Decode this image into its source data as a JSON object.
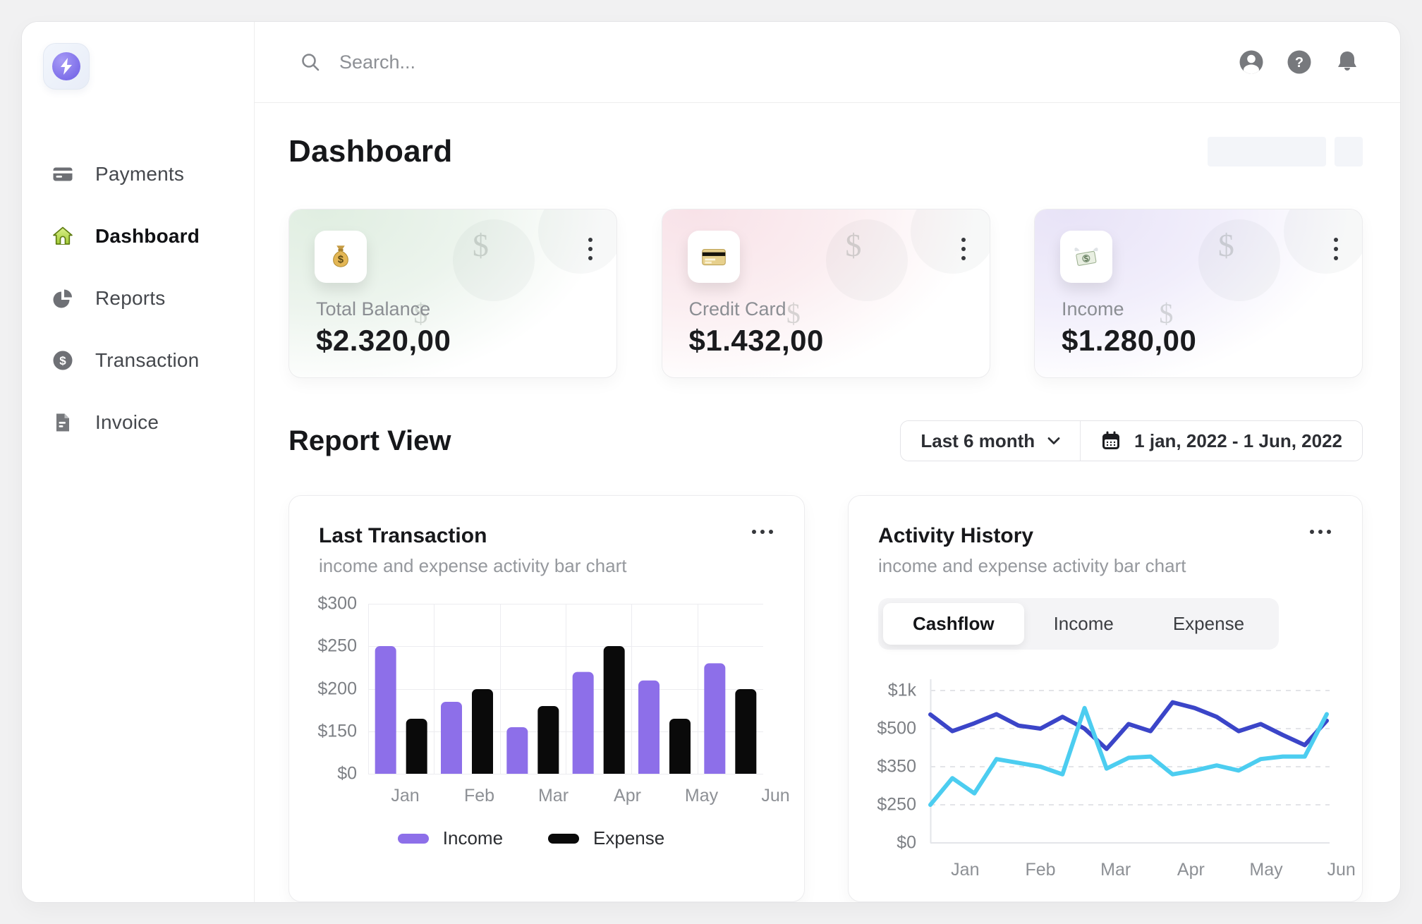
{
  "topbar": {
    "search_placeholder": "Search...",
    "icons": [
      "profile",
      "help",
      "notifications"
    ]
  },
  "sidebar": {
    "logo": "lightning-logo",
    "items": [
      {
        "label": "Payments",
        "icon": "payments",
        "active": false
      },
      {
        "label": "Dashboard",
        "icon": "dashboard",
        "active": true
      },
      {
        "label": "Reports",
        "icon": "reports",
        "active": false
      },
      {
        "label": "Transaction",
        "icon": "transaction",
        "active": false
      },
      {
        "label": "Invoice",
        "icon": "invoice",
        "active": false
      }
    ]
  },
  "page": {
    "title": "Dashboard",
    "report_section_title": "Report View"
  },
  "stat_cards": [
    {
      "label": "Total Balance",
      "value": "$2.320,00",
      "icon": "money-bag",
      "theme": "green",
      "accent": "#e0eee1"
    },
    {
      "label": "Credit Card",
      "value": "$1.432,00",
      "icon": "credit-card",
      "theme": "pink",
      "accent": "#f8e2e8"
    },
    {
      "label": "Income",
      "value": "$1.280,00",
      "icon": "flying-money",
      "theme": "purple",
      "accent": "#e8e3f7"
    }
  ],
  "filters": {
    "range": "Last 6 month",
    "date_range": "1 jan, 2022 - 1 Jun, 2022"
  },
  "activity_tabs": {
    "options": [
      "Cashflow",
      "Income",
      "Expense"
    ],
    "active": "Cashflow"
  },
  "chart_data": [
    {
      "type": "bar",
      "title": "Last Transaction",
      "subtitle": "income and expense activity bar chart",
      "categories": [
        "Jan",
        "Feb",
        "Mar",
        "Apr",
        "May",
        "Jun"
      ],
      "series": [
        {
          "name": "Income",
          "color": "#8d6fe9",
          "values": [
            250,
            185,
            155,
            220,
            210,
            230
          ]
        },
        {
          "name": "Expense",
          "color": "#0a0a0a",
          "values": [
            165,
            200,
            180,
            250,
            165,
            200
          ]
        }
      ],
      "yticks": [
        0,
        150,
        200,
        250,
        300
      ],
      "ytick_labels": [
        "$0",
        "$150",
        "$200",
        "$250",
        "$300"
      ],
      "ylim": [
        0,
        300
      ],
      "grid": true,
      "legend_position": "bottom"
    },
    {
      "type": "line",
      "title": "Activity History",
      "subtitle": "income and expense activity bar chart",
      "categories": [
        "Jan",
        "Feb",
        "Mar",
        "Apr",
        "May",
        "Jun"
      ],
      "yticks": [
        0,
        250,
        350,
        500,
        1000
      ],
      "ytick_labels": [
        "$0",
        "$250",
        "$350",
        "$500",
        "$1k"
      ],
      "ylim": [
        0,
        1000
      ],
      "grid": "dashed-horizontal",
      "series": [
        {
          "name": "cashflow-dark-blue",
          "color": "#3b45c8",
          "values": [
            685,
            490,
            570,
            690,
            540,
            500,
            655,
            500,
            420,
            560,
            490,
            845,
            770,
            655,
            490,
            560,
            475,
            435,
            605
          ]
        },
        {
          "name": "cashflow-light-blue",
          "color": "#4ccdf0",
          "values": [
            250,
            320,
            280,
            380,
            365,
            350,
            330,
            770,
            345,
            385,
            390,
            330,
            340,
            355,
            340,
            380,
            390,
            390,
            690
          ]
        }
      ]
    }
  ]
}
